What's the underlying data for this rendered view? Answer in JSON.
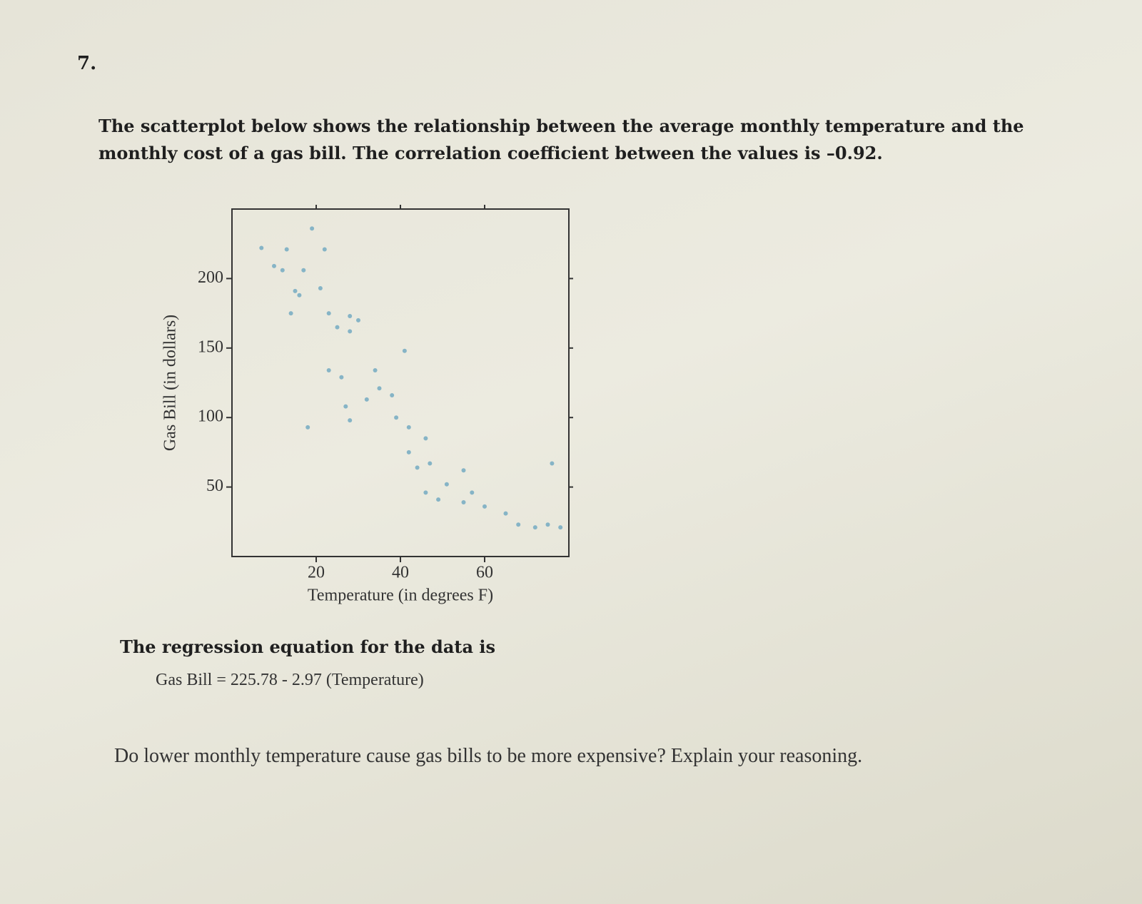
{
  "question_number": "7.",
  "intro": "The scatterplot below shows the relationship between the average monthly temperature and the monthly cost of a gas bill. The correlation coefficient between the values is –0.92.",
  "chart_data": {
    "type": "scatter",
    "x_label": "Temperature (in degrees F)",
    "y_label": "Gas Bill (in dollars)",
    "x": [
      7,
      13,
      22,
      19,
      10,
      12,
      17,
      15,
      16,
      21,
      14,
      23,
      28,
      25,
      28,
      30,
      41,
      23,
      26,
      34,
      35,
      38,
      27,
      32,
      39,
      18,
      28,
      42,
      46,
      42,
      47,
      55,
      51,
      57,
      55,
      60,
      65,
      68,
      72,
      75,
      78,
      76,
      49,
      44,
      46
    ],
    "values": [
      222,
      221,
      221,
      236,
      209,
      206,
      206,
      191,
      188,
      193,
      175,
      175,
      173,
      165,
      162,
      170,
      148,
      134,
      129,
      134,
      121,
      116,
      108,
      113,
      100,
      93,
      98,
      93,
      85,
      75,
      67,
      62,
      52,
      46,
      39,
      36,
      31,
      23,
      21,
      23,
      21,
      67,
      41,
      64,
      46
    ],
    "color": "#86b4c6",
    "xlim": [
      0,
      80
    ],
    "ylim": [
      0,
      250
    ],
    "xticks": [
      20,
      40,
      60
    ],
    "yticks": [
      50,
      100,
      150,
      200
    ],
    "grid": false
  },
  "regression": {
    "lead": "The regression equation for the data is",
    "equation": "Gas Bill = 225.78 - 2.97  (Temperature)"
  },
  "question": "Do lower monthly temperature cause gas bills to be more expensive? Explain your reasoning."
}
